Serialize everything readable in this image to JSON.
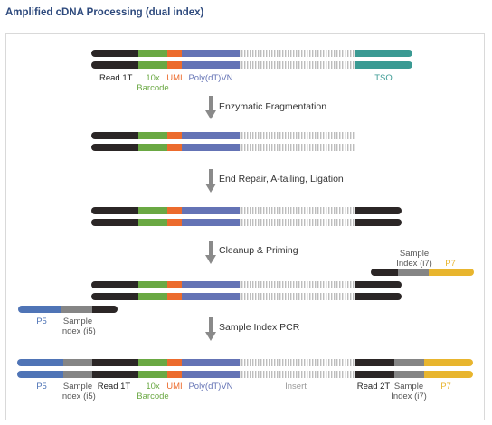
{
  "title": "Amplified cDNA Processing (dual index)",
  "steps": {
    "fragmentation": "Enzymatic Fragmentation",
    "end_repair": "End Repair, A-tailing, Ligation",
    "cleanup": "Cleanup & Priming",
    "pcr": "Sample Index PCR"
  },
  "labels": {
    "read1t": "Read 1T",
    "barcode_l1": "10x",
    "barcode_l2": "Barcode",
    "umi": "UMI",
    "polydt": "Poly(dT)VN",
    "tso": "TSO",
    "sample_l1": "Sample",
    "index_i7": "Index (i7)",
    "p7": "P7",
    "p5": "P5",
    "index_i5": "Index (i5)",
    "insert": "Insert",
    "read2t": "Read 2T"
  },
  "colors": {
    "read": "#2b2626",
    "barcode": "#6aa843",
    "umi": "#ec6b2d",
    "polydt": "#6473b5",
    "insert": "#bdbdbd",
    "tso": "#3a9a93",
    "p5": "#4f74b6",
    "index": "#858585",
    "p7": "#e8b52e",
    "arrow": "#8a8a8a",
    "title": "#2e4a7d"
  }
}
